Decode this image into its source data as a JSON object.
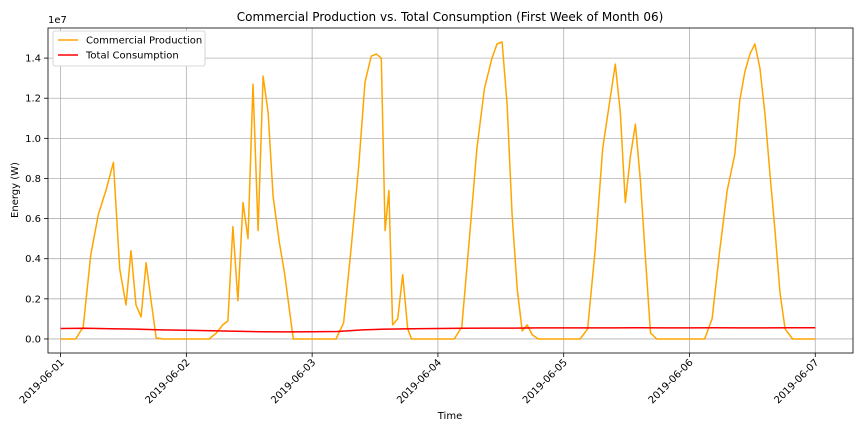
{
  "chart_data": {
    "type": "line",
    "title": "Commercial Production vs. Total Consumption (First Week of Month 06)",
    "xlabel": "Time",
    "ylabel": "Energy (W)",
    "y_scale_label": "1e7",
    "y_exponent": 7,
    "ylim": [
      -0.07,
      1.55
    ],
    "xlim": [
      -0.1,
      6.3
    ],
    "grid": true,
    "legend_position": "upper-left",
    "x_ticks": [
      {
        "value": 0,
        "label": "2019-06-01"
      },
      {
        "value": 1,
        "label": "2019-06-02"
      },
      {
        "value": 2,
        "label": "2019-06-03"
      },
      {
        "value": 3,
        "label": "2019-06-04"
      },
      {
        "value": 4,
        "label": "2019-06-05"
      },
      {
        "value": 5,
        "label": "2019-06-06"
      },
      {
        "value": 6,
        "label": "2019-06-07"
      }
    ],
    "y_ticks": [
      {
        "value": 0.0,
        "label": "0.0"
      },
      {
        "value": 0.2,
        "label": "0.2"
      },
      {
        "value": 0.4,
        "label": "0.4"
      },
      {
        "value": 0.6,
        "label": "0.6"
      },
      {
        "value": 0.8,
        "label": "0.8"
      },
      {
        "value": 1.0,
        "label": "1.0"
      },
      {
        "value": 1.2,
        "label": "1.2"
      },
      {
        "value": 1.4,
        "label": "1.4"
      }
    ],
    "series": [
      {
        "name": "Commercial Production",
        "color": "#FFA500",
        "x": [
          0,
          0.06,
          0.12,
          0.18,
          0.24,
          0.3,
          0.36,
          0.42,
          0.47,
          0.52,
          0.56,
          0.6,
          0.64,
          0.68,
          0.72,
          0.76,
          0.82,
          0.9,
          1.0,
          1.1,
          1.18,
          1.24,
          1.29,
          1.33,
          1.37,
          1.41,
          1.45,
          1.49,
          1.53,
          1.57,
          1.61,
          1.65,
          1.69,
          1.74,
          1.78,
          1.85,
          1.95,
          2.05,
          2.13,
          2.19,
          2.25,
          2.31,
          2.37,
          2.42,
          2.47,
          2.51,
          2.55,
          2.58,
          2.61,
          2.64,
          2.68,
          2.72,
          2.76,
          2.79,
          2.82,
          2.9,
          3.0,
          3.13,
          3.19,
          3.25,
          3.31,
          3.37,
          3.43,
          3.47,
          3.51,
          3.55,
          3.59,
          3.63,
          3.67,
          3.71,
          3.75,
          3.8,
          3.9,
          4.0,
          4.13,
          4.19,
          4.25,
          4.31,
          4.37,
          4.41,
          4.45,
          4.49,
          4.53,
          4.57,
          4.61,
          4.65,
          4.69,
          4.74,
          4.8,
          4.9,
          5.0,
          5.12,
          5.18,
          5.24,
          5.3,
          5.36,
          5.4,
          5.44,
          5.48,
          5.52,
          5.56,
          5.6,
          5.64,
          5.68,
          5.72,
          5.76,
          5.82,
          5.9,
          6.0
        ],
        "values": [
          0,
          0,
          0,
          0.06,
          0.42,
          0.62,
          0.74,
          0.88,
          0.35,
          0.17,
          0.44,
          0.17,
          0.11,
          0.38,
          0.19,
          0.005,
          0,
          0,
          0,
          0,
          0,
          0.03,
          0.07,
          0.09,
          0.56,
          0.19,
          0.68,
          0.5,
          1.27,
          0.54,
          1.31,
          1.13,
          0.71,
          0.48,
          0.33,
          0,
          0,
          0,
          0,
          0,
          0.08,
          0.45,
          0.86,
          1.28,
          1.41,
          1.42,
          1.4,
          0.54,
          0.74,
          0.07,
          0.1,
          0.32,
          0.05,
          0,
          0,
          0,
          0,
          0,
          0.06,
          0.5,
          0.95,
          1.25,
          1.4,
          1.47,
          1.48,
          1.17,
          0.62,
          0.25,
          0.04,
          0.07,
          0.02,
          0,
          0,
          0,
          0,
          0.05,
          0.44,
          0.95,
          1.2,
          1.37,
          1.13,
          0.68,
          0.91,
          1.07,
          0.79,
          0.4,
          0.03,
          0,
          0,
          0,
          0,
          0,
          0.1,
          0.44,
          0.74,
          0.92,
          1.19,
          1.33,
          1.42,
          1.47,
          1.35,
          1.12,
          0.82,
          0.54,
          0.23,
          0.05,
          0,
          0,
          0
        ]
      },
      {
        "name": "Total Consumption",
        "color": "#FF0000",
        "x": [
          0,
          0.2,
          0.4,
          0.6,
          0.8,
          1.0,
          1.2,
          1.4,
          1.6,
          1.8,
          2.0,
          2.2,
          2.4,
          2.6,
          2.8,
          3.0,
          3.2,
          3.4,
          3.6,
          3.8,
          4.0,
          4.2,
          4.4,
          4.6,
          4.8,
          5.0,
          5.2,
          5.4,
          5.6,
          5.8,
          6.0
        ],
        "values": [
          0.052,
          0.053,
          0.051,
          0.049,
          0.045,
          0.043,
          0.041,
          0.038,
          0.036,
          0.035,
          0.036,
          0.037,
          0.045,
          0.049,
          0.051,
          0.052,
          0.053,
          0.054,
          0.054,
          0.055,
          0.055,
          0.055,
          0.055,
          0.056,
          0.055,
          0.055,
          0.056,
          0.055,
          0.055,
          0.056,
          0.056
        ]
      }
    ]
  }
}
